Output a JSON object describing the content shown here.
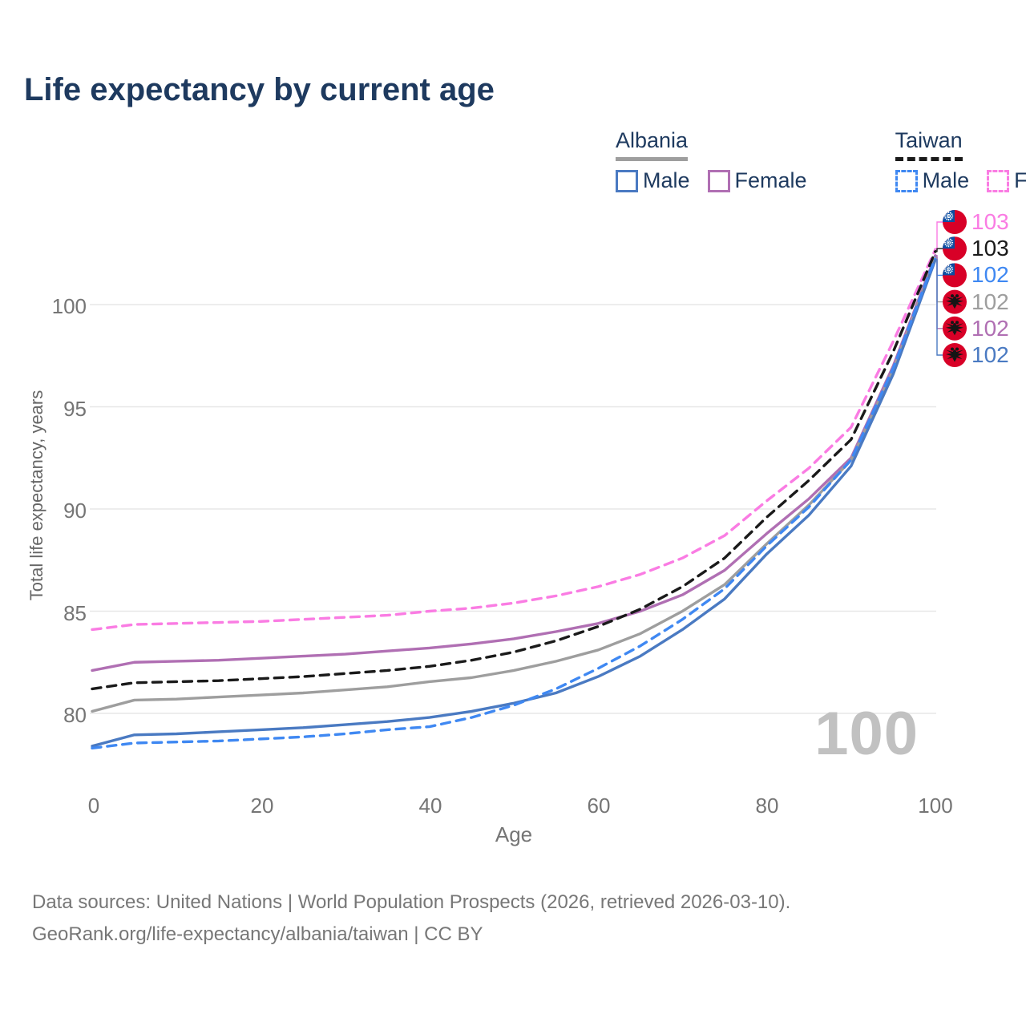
{
  "title": "Life expectancy by current age",
  "x_axis": {
    "label": "Age",
    "ticks": [
      "0",
      "20",
      "40",
      "60",
      "80",
      "100"
    ]
  },
  "y_axis": {
    "label": "Total life expectancy, years",
    "ticks": [
      "80",
      "85",
      "90",
      "95",
      "100"
    ]
  },
  "legend": {
    "groups": [
      {
        "label": "Albania",
        "line_style": "solid",
        "underline_color": "#9e9e9e",
        "items": [
          {
            "label": "Male",
            "color": "#4a7ac2"
          },
          {
            "label": "Female",
            "color": "#b06fb3"
          }
        ]
      },
      {
        "label": "Taiwan",
        "line_style": "dashed",
        "underline_color": "#1a1a1a",
        "items": [
          {
            "label": "Male",
            "color": "#3f88f2"
          },
          {
            "label": "Female",
            "color": "#fa7ce3"
          }
        ]
      }
    ]
  },
  "watermark": "100",
  "footer": {
    "line1": "Data sources: United Nations | World Population Prospects (2026, retrieved 2026-03-10).",
    "line2": "GeoRank.org/life-expectancy/albania/taiwan | CC BY"
  },
  "end_labels": [
    {
      "value": "103",
      "color": "#fa7ce3",
      "flag": "taiwan",
      "series": "taiwan_female"
    },
    {
      "value": "103",
      "color": "#1a1a1a",
      "flag": "taiwan",
      "series": "taiwan_total"
    },
    {
      "value": "102",
      "color": "#3f88f2",
      "flag": "taiwan",
      "series": "taiwan_male"
    },
    {
      "value": "102",
      "color": "#9e9e9e",
      "flag": "albania",
      "series": "albania_total"
    },
    {
      "value": "102",
      "color": "#b06fb3",
      "flag": "albania",
      "series": "albania_female"
    },
    {
      "value": "102",
      "color": "#4a7ac2",
      "flag": "albania",
      "series": "albania_male"
    }
  ],
  "chart_data": {
    "type": "line",
    "title": "Life expectancy by current age",
    "xlabel": "Age",
    "ylabel": "Total life expectancy, years",
    "xlim": [
      0,
      100
    ],
    "ylim": [
      77.5,
      103.5
    ],
    "grid": "horizontal",
    "gridlines_y": [
      80,
      85,
      90,
      95,
      100
    ],
    "legend_position": "top-right",
    "x": [
      0,
      5,
      10,
      15,
      20,
      25,
      30,
      35,
      40,
      45,
      50,
      55,
      60,
      65,
      70,
      75,
      80,
      85,
      90,
      95,
      100
    ],
    "series": [
      {
        "id": "albania_female",
        "name": "Albania Female",
        "color": "#b06fb3",
        "dash": false,
        "values": [
          82.1,
          82.5,
          82.55,
          82.6,
          82.7,
          82.8,
          82.9,
          83.05,
          83.2,
          83.4,
          83.65,
          84.0,
          84.4,
          85.0,
          85.8,
          87.0,
          88.8,
          90.5,
          92.5,
          97.0,
          102.4
        ]
      },
      {
        "id": "albania_total",
        "name": "Albania Total",
        "color": "#9e9e9e",
        "dash": false,
        "values": [
          80.1,
          80.65,
          80.7,
          80.8,
          80.9,
          81.0,
          81.15,
          81.3,
          81.55,
          81.75,
          82.1,
          82.55,
          83.1,
          83.9,
          85.0,
          86.3,
          88.3,
          90.2,
          92.4,
          96.8,
          102.3
        ]
      },
      {
        "id": "albania_male",
        "name": "Albania Male",
        "color": "#4a7ac2",
        "dash": false,
        "values": [
          78.4,
          78.95,
          79.0,
          79.1,
          79.2,
          79.3,
          79.45,
          79.6,
          79.8,
          80.1,
          80.5,
          81.0,
          81.8,
          82.8,
          84.1,
          85.6,
          87.8,
          89.7,
          92.1,
          96.6,
          102.2
        ]
      },
      {
        "id": "taiwan_female",
        "name": "Taiwan Female",
        "color": "#fa7ce3",
        "dash": true,
        "values": [
          84.1,
          84.35,
          84.4,
          84.45,
          84.5,
          84.6,
          84.7,
          84.8,
          85.0,
          85.15,
          85.4,
          85.75,
          86.2,
          86.8,
          87.6,
          88.7,
          90.4,
          92.0,
          94.0,
          98.2,
          102.7
        ]
      },
      {
        "id": "taiwan_total",
        "name": "Taiwan Total",
        "color": "#1a1a1a",
        "dash": true,
        "values": [
          81.2,
          81.5,
          81.55,
          81.6,
          81.7,
          81.8,
          81.95,
          82.1,
          82.3,
          82.6,
          83.0,
          83.55,
          84.25,
          85.1,
          86.2,
          87.6,
          89.6,
          91.4,
          93.4,
          97.7,
          102.6
        ]
      },
      {
        "id": "taiwan_male",
        "name": "Taiwan Male",
        "color": "#3f88f2",
        "dash": true,
        "values": [
          78.3,
          78.55,
          78.6,
          78.65,
          78.75,
          78.85,
          79.0,
          79.2,
          79.35,
          79.8,
          80.4,
          81.2,
          82.2,
          83.3,
          84.6,
          86.1,
          88.2,
          90.1,
          92.4,
          96.9,
          102.3
        ]
      }
    ]
  }
}
